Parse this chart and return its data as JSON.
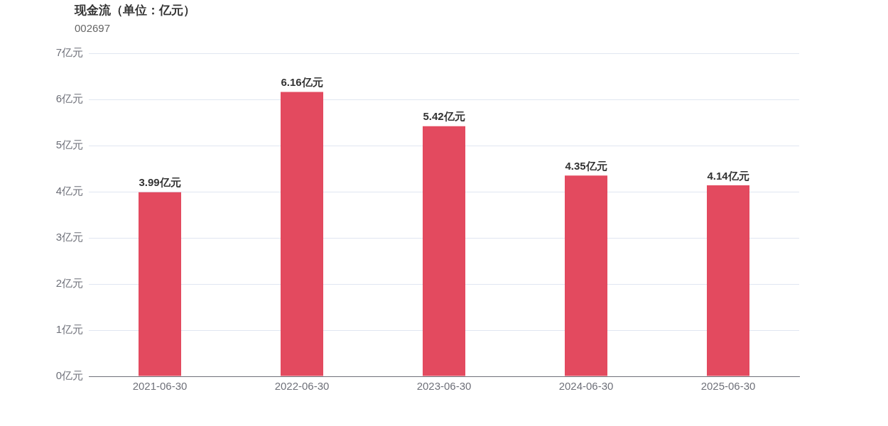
{
  "chart_data": {
    "type": "bar",
    "title": "现金流（单位：亿元）",
    "subtitle": "002697",
    "categories": [
      "2021-06-30",
      "2022-06-30",
      "2023-06-30",
      "2024-06-30",
      "2025-06-30"
    ],
    "values": [
      3.99,
      6.16,
      5.42,
      4.35,
      4.14
    ],
    "value_labels": [
      "3.99亿元",
      "6.16亿元",
      "5.42亿元",
      "4.35亿元",
      "4.14亿元"
    ],
    "color": "#e34a5f",
    "ylim": [
      0,
      7
    ],
    "yticks": [
      {
        "value": 0,
        "label": "0亿元"
      },
      {
        "value": 1,
        "label": "1亿元"
      },
      {
        "value": 2,
        "label": "2亿元"
      },
      {
        "value": 3,
        "label": "3亿元"
      },
      {
        "value": 4,
        "label": "4亿元"
      },
      {
        "value": 5,
        "label": "5亿元"
      },
      {
        "value": 6,
        "label": "6亿元"
      },
      {
        "value": 7,
        "label": "7亿元"
      }
    ],
    "grid": "y",
    "legend": false
  }
}
